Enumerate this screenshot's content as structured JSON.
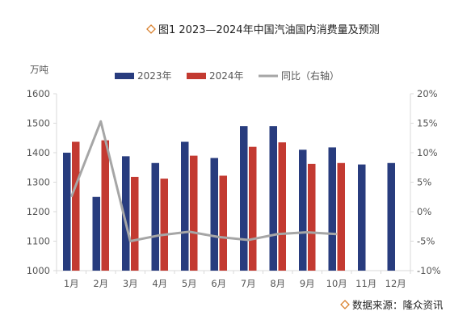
{
  "header": {
    "title": "图1 2023—2024年中国汽油国内消费量及预测"
  },
  "footer": {
    "source": "数据来源：隆众资讯"
  },
  "colors": {
    "bar_2023": "#283c7e",
    "bar_2024": "#c33a31",
    "line_yoy": "#a6a6a6",
    "diamond": "#d9812e",
    "axis": "#d9d9d9"
  },
  "chart_data": {
    "type": "bar",
    "title": "图1 2023—2024年中国汽油国内消费量及预测",
    "y_unit": "万吨",
    "categories": [
      "1月",
      "2月",
      "3月",
      "4月",
      "5月",
      "6月",
      "7月",
      "8月",
      "9月",
      "10月",
      "11月",
      "12月"
    ],
    "ylim": [
      1000,
      1600
    ],
    "yticks": [
      1000,
      1100,
      1200,
      1300,
      1400,
      1500,
      1600
    ],
    "y2lim": [
      -10,
      20
    ],
    "y2ticks": [
      "20%",
      "15%",
      "10%",
      "5%",
      "0%",
      "-5%",
      "-10%"
    ],
    "y2tick_values": [
      20,
      15,
      10,
      5,
      0,
      -5,
      -10
    ],
    "legend_position": "top",
    "grid": false,
    "series": [
      {
        "name": "2023年",
        "type": "bar",
        "axis": "left",
        "values": [
          1400,
          1250,
          1388,
          1365,
          1437,
          1382,
          1490,
          1490,
          1410,
          1418,
          1360,
          1365
        ]
      },
      {
        "name": "2024年",
        "type": "bar",
        "axis": "left",
        "values": [
          1437,
          1442,
          1318,
          1312,
          1390,
          1322,
          1420,
          1435,
          1362,
          1365,
          null,
          null
        ]
      },
      {
        "name": "同比（右轴）",
        "type": "line",
        "axis": "right",
        "values": [
          2.5,
          15.3,
          -5.0,
          -4.0,
          -3.4,
          -4.3,
          -4.8,
          -3.8,
          -3.5,
          -3.8,
          null,
          null
        ]
      }
    ]
  }
}
